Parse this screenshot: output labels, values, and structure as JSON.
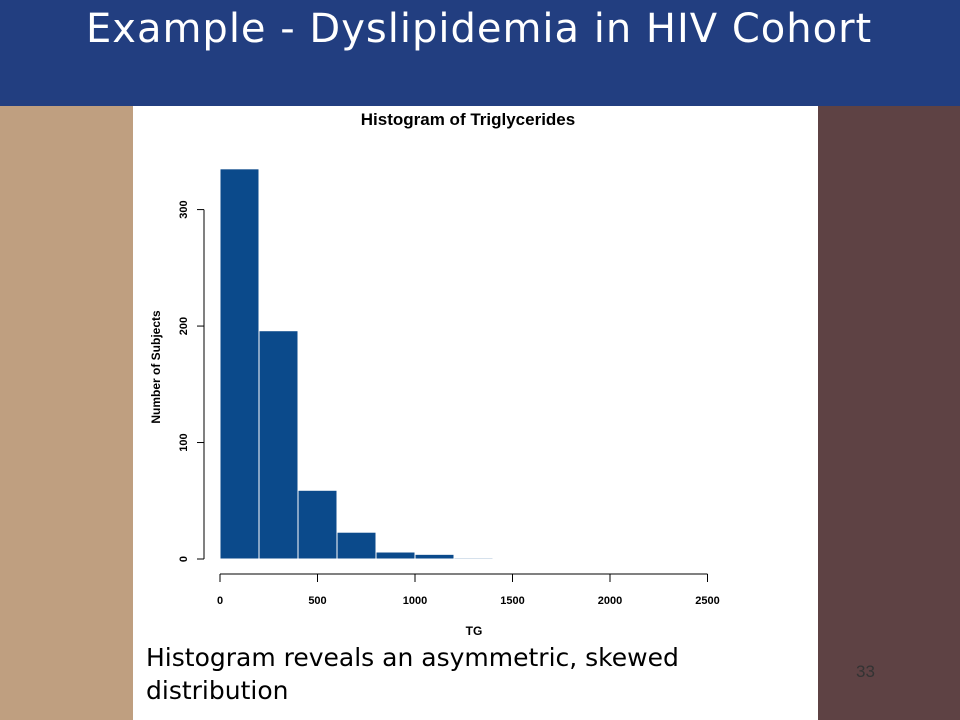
{
  "slide": {
    "title": "Example - Dyslipidemia in HIV Cohort",
    "caption": "Histogram reveals an asymmetric, skewed distribution",
    "page_number": "33"
  },
  "colors": {
    "header": "#223e80",
    "left_band": "#bf9f80",
    "right_band": "#5e4244",
    "bar_fill": "#0b4a8b"
  },
  "chart_data": {
    "type": "bar",
    "title": "Histogram of Triglycerides",
    "xlabel": "TG",
    "ylabel": "Number of Subjects",
    "bin_width": 200,
    "bins": [
      {
        "start": 0,
        "end": 200,
        "count": 335
      },
      {
        "start": 200,
        "end": 400,
        "count": 196
      },
      {
        "start": 400,
        "end": 600,
        "count": 59
      },
      {
        "start": 600,
        "end": 800,
        "count": 23
      },
      {
        "start": 800,
        "end": 1000,
        "count": 6
      },
      {
        "start": 1000,
        "end": 1200,
        "count": 4
      },
      {
        "start": 1200,
        "end": 1400,
        "count": 1
      },
      {
        "start": 1400,
        "end": 1600,
        "count": 0
      },
      {
        "start": 1600,
        "end": 1800,
        "count": 0
      },
      {
        "start": 1800,
        "end": 2000,
        "count": 0
      },
      {
        "start": 2000,
        "end": 2200,
        "count": 0
      },
      {
        "start": 2200,
        "end": 2400,
        "count": 0
      },
      {
        "start": 2400,
        "end": 2600,
        "count": 0
      }
    ],
    "xlim": [
      0,
      2600
    ],
    "ylim": [
      0,
      340
    ],
    "x_ticks": [
      0,
      500,
      1000,
      1500,
      2000,
      2500
    ],
    "y_ticks": [
      0,
      100,
      200,
      300
    ]
  }
}
